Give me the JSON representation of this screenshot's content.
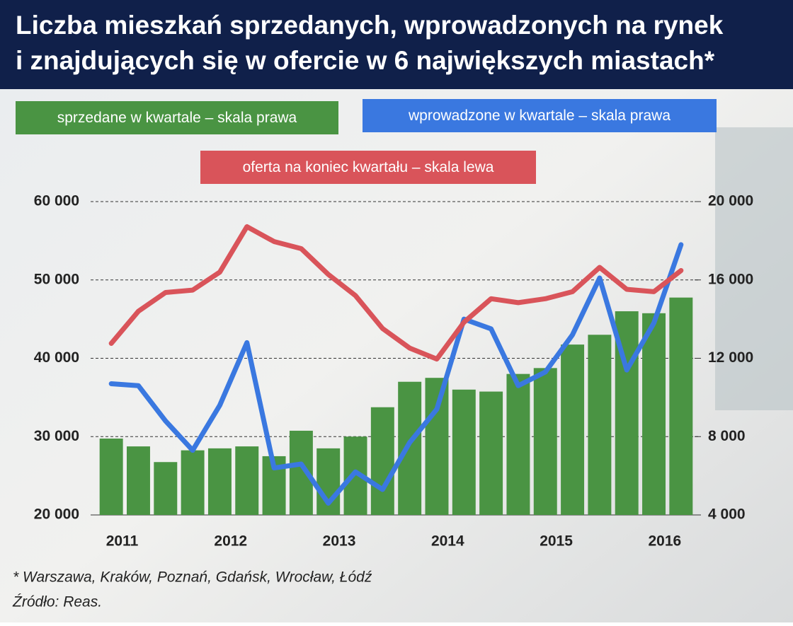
{
  "chart_data": {
    "type": "bar",
    "title": [
      "Liczba mieszkań sprzedanych, wprowadzonych na rynek",
      "i znajdujących się w ofercie w 6 największych miastach*"
    ],
    "notes": [
      "* Warszawa, Kraków, Poznań, Gdańsk, Wrocław, Łódź",
      "Źródło: Reas."
    ],
    "categories": [
      "2011",
      null,
      null,
      null,
      "2012",
      null,
      null,
      null,
      "2013",
      null,
      null,
      null,
      "2014",
      null,
      null,
      null,
      "2015",
      null,
      null,
      null,
      "2016",
      null
    ],
    "series": [
      {
        "name": "sprzedane w kwartale – skala prawa",
        "type": "bar",
        "axis": "y2",
        "color": "#4a9443",
        "values": [
          7900,
          7500,
          6700,
          7300,
          7400,
          7500,
          7000,
          8300,
          7400,
          8000,
          9500,
          10800,
          11000,
          10400,
          10300,
          11200,
          11500,
          12700,
          13200,
          14400,
          14300,
          15100
        ]
      },
      {
        "name": "wprowadzone w kwartale – skala prawa",
        "type": "line",
        "axis": "y2",
        "color": "#3a78e0",
        "values": [
          10700,
          10600,
          8800,
          7300,
          9600,
          12800,
          6400,
          6600,
          4600,
          6200,
          5300,
          7700,
          9400,
          14000,
          13500,
          10600,
          11300,
          13200,
          16100,
          11400,
          13800,
          17800
        ]
      },
      {
        "name": "oferta na koniec kwartału – skala lewa",
        "type": "line",
        "axis": "y",
        "color": "#d9545a",
        "values": [
          41900,
          46000,
          48400,
          48700,
          51000,
          56800,
          54900,
          54000,
          50700,
          48000,
          43800,
          41300,
          39900,
          44600,
          47600,
          47100,
          47600,
          48500,
          51600,
          48800,
          48500,
          51200
        ]
      }
    ],
    "ylim": [
      20000,
      60000
    ],
    "yticks": [
      {
        "value": 20000,
        "label": "20 000"
      },
      {
        "value": 30000,
        "label": "30 000"
      },
      {
        "value": 40000,
        "label": "40 000"
      },
      {
        "value": 50000,
        "label": "50 000"
      },
      {
        "value": 60000,
        "label": "60 000"
      }
    ],
    "y2lim": [
      4000,
      20000
    ],
    "y2ticks": [
      {
        "value": 4000,
        "label": "4 000"
      },
      {
        "value": 8000,
        "label": "8 000"
      },
      {
        "value": 12000,
        "label": "12 000"
      },
      {
        "value": 16000,
        "label": "16 000"
      },
      {
        "value": 20000,
        "label": "20 000"
      }
    ],
    "grid": true
  }
}
